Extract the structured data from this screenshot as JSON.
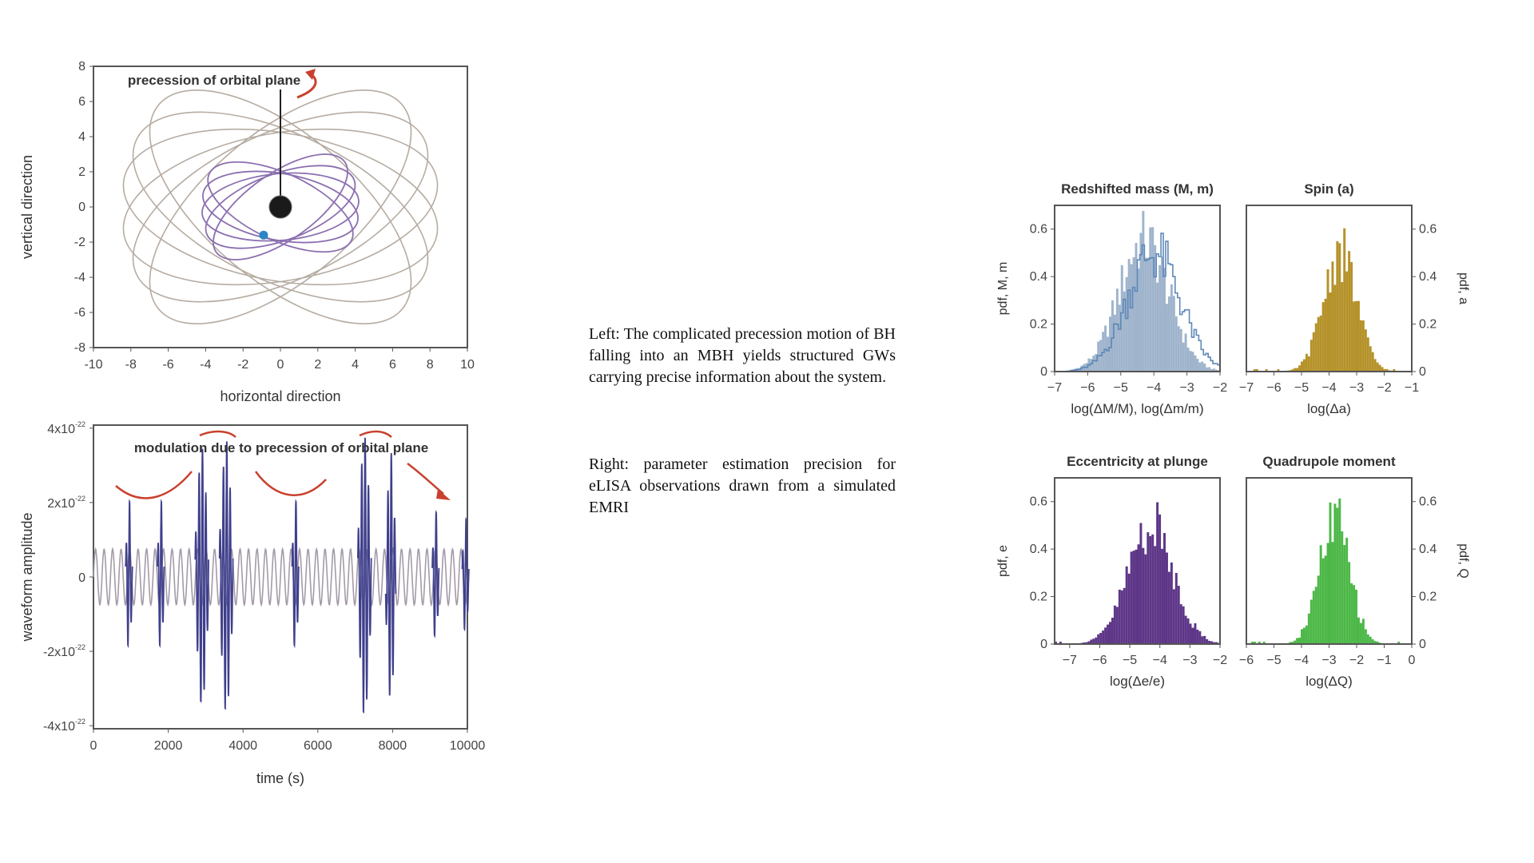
{
  "captions": {
    "left": "Left: The complicated precession motion of BH falling into an MBH yields structured GWs carrying precise information about the system.",
    "right": "Right: parameter estimation precision for eLISA observations drawn from a simulated EMRI"
  },
  "colors": {
    "outer_orbit": "#b6aca2",
    "inner_orbit": "#8b6fb0",
    "wave_blue": "#3f3f8c",
    "wave_gray": "#a49aa8",
    "annotation_red": "#c8412e",
    "hist_blue": "#9fb4cc",
    "hist_blue_line": "#5f88b8",
    "hist_gold": "#b5922a",
    "hist_purple": "#5e3688",
    "hist_green": "#4db848",
    "axis": "#555555"
  },
  "chart_data": [
    {
      "id": "orbit",
      "type": "line",
      "title": "",
      "annotation": "precession of orbital plane",
      "xlabel": "horizontal direction",
      "ylabel": "vertical direction",
      "xlim": [
        -10,
        10
      ],
      "ylim": [
        -8,
        8
      ],
      "xticks": [
        "-10",
        "-8",
        "-6",
        "-4",
        "-2",
        "0",
        "2",
        "4",
        "6",
        "8",
        "10"
      ],
      "yticks": [
        "8",
        "6",
        "4",
        "2",
        "0",
        "-2",
        "-4",
        "-6",
        "-8"
      ],
      "central_bh": {
        "x": 0,
        "y": 0
      },
      "small_body": {
        "x": -0.9,
        "y": -1.6
      },
      "outer_orbit": {
        "a": 8.5,
        "b": 4.2,
        "tilts_deg": [
          -40,
          -25,
          -10,
          10,
          25,
          40
        ]
      },
      "inner_orbit": {
        "a": 4.2,
        "b": 1.9,
        "tilts_deg": [
          -35,
          -20,
          -5,
          10,
          25
        ]
      }
    },
    {
      "id": "waveform",
      "type": "line",
      "annotation": "modulation due to precession of orbital plane",
      "xlabel": "time (s)",
      "ylabel": "waveform amplitude",
      "xlim": [
        0,
        10000
      ],
      "ylim": [
        -4e-22,
        4e-22
      ],
      "xticks": [
        "0",
        "2000",
        "4000",
        "6000",
        "8000",
        "10000"
      ],
      "yticks": [
        {
          "mant": "4x10",
          "exp": "-22",
          "value": 4
        },
        {
          "mant": "2x10",
          "exp": "-22",
          "value": 2
        },
        {
          "mant": "0",
          "exp": "",
          "value": 0
        },
        {
          "mant": "-2x10",
          "exp": "-22",
          "value": -2
        },
        {
          "mant": "-4x10",
          "exp": "-22",
          "value": -4
        }
      ],
      "bursts": [
        {
          "t": 950,
          "amp": 2.1,
          "n": 2
        },
        {
          "t": 1800,
          "amp": 2.1,
          "n": 2
        },
        {
          "t": 2900,
          "amp": 3.5,
          "n": 4
        },
        {
          "t": 3550,
          "amp": 3.7,
          "n": 4
        },
        {
          "t": 5400,
          "amp": 2.1,
          "n": 2
        },
        {
          "t": 7250,
          "amp": 3.8,
          "n": 4
        },
        {
          "t": 7950,
          "amp": 3.4,
          "n": 3
        },
        {
          "t": 9150,
          "amp": 1.8,
          "n": 2
        },
        {
          "t": 9950,
          "amp": 1.6,
          "n": 2
        }
      ]
    },
    {
      "id": "redshifted-mass",
      "type": "bar",
      "title": "Redshifted mass (M, m)",
      "xlabel": "log(ΔM/M), log(Δm/m)",
      "ylabel": "pdf, M, m",
      "xlim": [
        -7,
        -2
      ],
      "ylim": [
        0,
        0.7
      ],
      "xticks": [
        -7,
        -6,
        -5,
        -4,
        -3,
        -2
      ],
      "yticks": [
        0,
        0.2,
        0.4,
        0.6
      ],
      "series": [
        {
          "name": "M",
          "center": -4.3,
          "sigma": 0.75,
          "peak": 0.55,
          "style": "fill"
        },
        {
          "name": "m",
          "center": -4.0,
          "sigma": 0.8,
          "peak": 0.5,
          "style": "step"
        }
      ]
    },
    {
      "id": "spin",
      "type": "bar",
      "title": "Spin (a)",
      "xlabel": "log(Δa)",
      "ylabel": "pdf, a",
      "xlim": [
        -7,
        -1
      ],
      "ylim": [
        0,
        0.7
      ],
      "xticks": [
        -7,
        -6,
        -5,
        -4,
        -3,
        -2,
        -1
      ],
      "yticks": [
        0,
        0.2,
        0.4,
        0.6
      ],
      "series": [
        {
          "name": "a",
          "center": -3.6,
          "sigma": 0.6,
          "peak": 0.5,
          "style": "fill"
        }
      ]
    },
    {
      "id": "eccentricity",
      "type": "bar",
      "title": "Eccentricity at plunge",
      "xlabel": "log(Δe/e)",
      "ylabel": "pdf, e",
      "xlim": [
        -7.5,
        -2
      ],
      "ylim": [
        0,
        0.7
      ],
      "xticks": [
        -7,
        -6,
        -5,
        -4,
        -3,
        -2
      ],
      "yticks": [
        0,
        0.2,
        0.4,
        0.6
      ],
      "series": [
        {
          "name": "e",
          "center": -4.3,
          "sigma": 0.75,
          "peak": 0.5,
          "style": "fill"
        }
      ]
    },
    {
      "id": "quadrupole",
      "type": "bar",
      "title": "Quadrupole moment",
      "xlabel": "log(ΔQ)",
      "ylabel": "pdf, Q",
      "xlim": [
        -6,
        0
      ],
      "ylim": [
        0,
        0.7
      ],
      "xticks": [
        -6,
        -5,
        -4,
        -3,
        -2,
        -1,
        0
      ],
      "yticks": [
        0,
        0.2,
        0.4,
        0.6
      ],
      "series": [
        {
          "name": "Q",
          "center": -2.8,
          "sigma": 0.55,
          "peak": 0.52,
          "style": "fill"
        }
      ]
    }
  ]
}
